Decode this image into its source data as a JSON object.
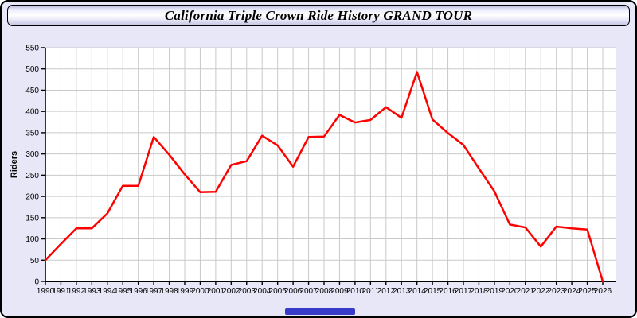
{
  "window": {
    "title": "California Triple Crown Ride History GRAND TOUR"
  },
  "colors": {
    "page_bg": "#E7E7F7",
    "plot_bg": "#FFFFFF",
    "grid": "#C9C9C9",
    "axis": "#000000",
    "line": "#FF0000",
    "scroll_thumb": "#3A3ACA"
  },
  "chart_data": {
    "type": "line",
    "title": "California Triple Crown Ride History GRAND TOUR",
    "xlabel": "",
    "ylabel": "Riders",
    "ylim": [
      0,
      550
    ],
    "ytick_step": 50,
    "grid": true,
    "legend": false,
    "x": [
      1990,
      1991,
      1992,
      1993,
      1994,
      1995,
      1996,
      1997,
      1998,
      1999,
      2000,
      2001,
      2002,
      2003,
      2004,
      2005,
      2006,
      2007,
      2008,
      2009,
      2010,
      2011,
      2012,
      2013,
      2014,
      2015,
      2016,
      2017,
      2018,
      2019,
      2020,
      2021,
      2022,
      2023,
      2024,
      2025,
      2026
    ],
    "series": [
      {
        "name": "Riders",
        "color": "#FF0000",
        "values": [
          50,
          88,
          125,
          125,
          160,
          225,
          225,
          340,
          298,
          252,
          210,
          211,
          274,
          283,
          343,
          320,
          270,
          340,
          341,
          392,
          374,
          380,
          410,
          385,
          493,
          381,
          349,
          321,
          266,
          212,
          134,
          127,
          82,
          129,
          125,
          122,
          0
        ]
      }
    ]
  }
}
